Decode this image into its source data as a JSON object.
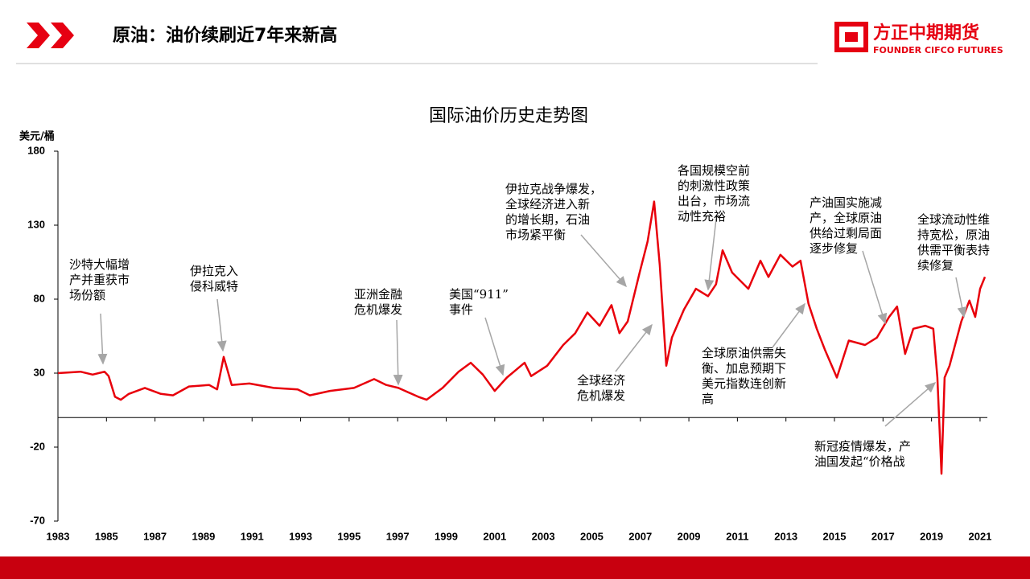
{
  "header": {
    "title": "原油：油价续刷近7年来新高",
    "logo_cn": "方正中期期货",
    "logo_en": "FOUNDER CIFCO FUTURES"
  },
  "chart_data": {
    "type": "line",
    "title": "国际油价历史走势图",
    "y_label": "美元/桶",
    "x": [
      1983.0,
      1983.93,
      1984.43,
      1984.92,
      1985.09,
      1985.35,
      1985.59,
      1985.92,
      1986.58,
      1987.24,
      1987.74,
      1988.4,
      1989.23,
      1989.56,
      1989.83,
      1990.16,
      1990.89,
      1991.89,
      1992.88,
      1993.38,
      1994.21,
      1995.2,
      1996.03,
      1996.53,
      1997.03,
      1997.85,
      1998.19,
      1998.85,
      1999.51,
      2000.01,
      2000.51,
      2001.0,
      2001.5,
      2002.23,
      2002.5,
      2003.16,
      2003.82,
      2004.32,
      2004.82,
      2005.32,
      2005.81,
      2006.14,
      2006.48,
      2006.97,
      2007.3,
      2007.57,
      2007.8,
      2008.07,
      2008.3,
      2008.8,
      2009.29,
      2009.79,
      2010.12,
      2010.39,
      2010.78,
      2011.45,
      2011.95,
      2012.28,
      2012.77,
      2013.27,
      2013.6,
      2013.93,
      2014.27,
      2014.6,
      2015.1,
      2015.59,
      2016.26,
      2016.75,
      2017.25,
      2017.58,
      2017.91,
      2018.25,
      2018.74,
      2019.07,
      2019.24,
      2019.41,
      2019.54,
      2019.74,
      2020.23,
      2020.56,
      2020.8,
      2021.0,
      2021.2
    ],
    "series": [
      {
        "name": "油价",
        "color": "#e8000b",
        "values": [
          30,
          31,
          29,
          31,
          28,
          14,
          12,
          16,
          20,
          16,
          15,
          21,
          22,
          19,
          41,
          22,
          23,
          20,
          19,
          15,
          18,
          20,
          26,
          22,
          20,
          14,
          12,
          20,
          31,
          37,
          29,
          18,
          27,
          37,
          28,
          35,
          49,
          57,
          71,
          62,
          76,
          57,
          65,
          98,
          119,
          146,
          103,
          35,
          54,
          73,
          87,
          82,
          90,
          113,
          98,
          87,
          106,
          95,
          110,
          102,
          106,
          77,
          60,
          46,
          27,
          52,
          49,
          54,
          68,
          75,
          43,
          60,
          62,
          60,
          27,
          -38,
          27,
          35,
          65,
          79,
          68,
          87,
          95
        ]
      }
    ],
    "xlim": [
      1983,
      2021.3
    ],
    "xticks": [
      1983,
      1985,
      1987,
      1989,
      1991,
      1993,
      1995,
      1997,
      1999,
      2001,
      2003,
      2005,
      2007,
      2009,
      2011,
      2013,
      2015,
      2017,
      2019,
      2021
    ],
    "ylim": [
      -70,
      180
    ],
    "yticks": [
      -70,
      -20,
      30,
      80,
      130,
      180
    ],
    "annotations": [
      {
        "text": [
          "沙特大幅增",
          "产并重获市",
          "场份额"
        ]
      },
      {
        "text": [
          "伊拉克入",
          "侵科威特"
        ]
      },
      {
        "text": [
          "亚洲金融",
          "危机爆发"
        ]
      },
      {
        "text": [
          "美国“911”",
          "事件"
        ]
      },
      {
        "text": [
          "伊拉克战争爆发，",
          "全球经济进入新",
          "的增长期，石油",
          "市场紧平衡"
        ]
      },
      {
        "text": [
          "全球经济",
          "危机爆发"
        ]
      },
      {
        "text": [
          "各国规模空前",
          "的刺激性政策",
          "出台，市场流",
          "动性充裕"
        ]
      },
      {
        "text": [
          "全球原油供需失",
          "衡、加息预期下",
          "美元指数连创新",
          "高"
        ]
      },
      {
        "text": [
          "产油国实施减",
          "产，全球原油",
          "供给过剩局面",
          "逐步修复"
        ]
      },
      {
        "text": [
          "全球流动性维",
          "持宽松，原油",
          "供需平衡表持",
          "续修复"
        ]
      },
      {
        "text": [
          "新冠疫情爆发，产",
          "油国发起“价格战"
        ]
      }
    ]
  }
}
